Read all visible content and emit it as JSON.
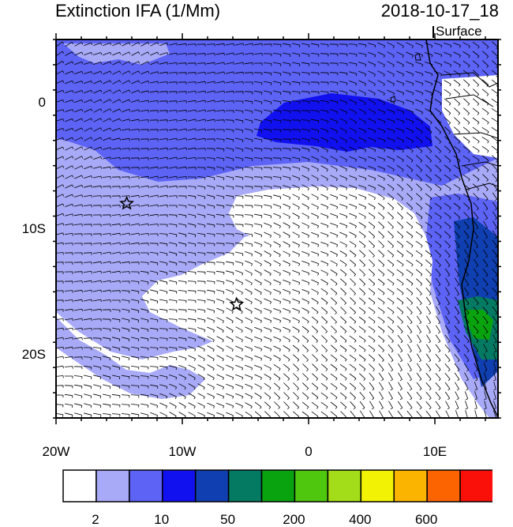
{
  "header": {
    "title": "Extinction IFA (1/Mm)",
    "datetime": "2018-10-17_18",
    "level": "Surface"
  },
  "axes": {
    "x_ticks": [
      "20W",
      "10W",
      "0",
      "10E"
    ],
    "x_values": [
      -20,
      -10,
      0,
      10
    ],
    "y_ticks": [
      "0",
      "10S",
      "20S"
    ],
    "y_values": [
      0,
      -10,
      -20
    ],
    "lon_range": [
      -20,
      15
    ],
    "lat_range": [
      -25,
      5
    ]
  },
  "markers": [
    {
      "name": "star-marker",
      "lon": -14.4,
      "lat": -8.0
    },
    {
      "name": "star-marker",
      "lon": -5.7,
      "lat": -16.0
    }
  ],
  "colorbar": {
    "colors": [
      "#ffffff",
      "#a8aaf8",
      "#5c63f5",
      "#1111f0",
      "#0f3fb0",
      "#047a63",
      "#09a310",
      "#4fc70f",
      "#a3dc18",
      "#f2f205",
      "#fbb400",
      "#fb6400",
      "#fb1009"
    ],
    "labels": [
      {
        "text": "2",
        "after_box": 1
      },
      {
        "text": "10",
        "after_box": 3
      },
      {
        "text": "50",
        "after_box": 5
      },
      {
        "text": "200",
        "after_box": 7
      },
      {
        "text": "400",
        "after_box": 9
      },
      {
        "text": "600",
        "after_box": 11
      }
    ]
  }
}
